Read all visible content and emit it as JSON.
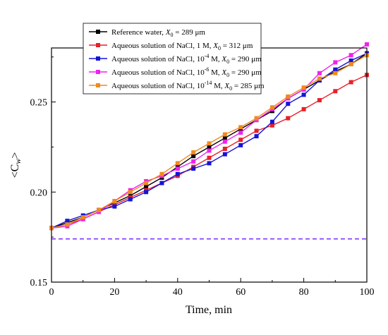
{
  "chart_data": {
    "type": "line",
    "title": "",
    "xlabel": "Time, min",
    "ylabel": "<C",
    "ylabel_sub": "w",
    "ylabel_end": ">",
    "xlim": [
      0,
      100
    ],
    "ylim": [
      0.15,
      0.28
    ],
    "xticks": [
      0,
      20,
      40,
      60,
      80,
      100
    ],
    "yticks": [
      0.15,
      0.2,
      0.25
    ],
    "xtick_labels": [
      "0",
      "20",
      "40",
      "60",
      "80",
      "100"
    ],
    "ytick_labels": [
      "0.15",
      "0.20",
      "0.25"
    ],
    "grid": false,
    "legend_position": "top-left",
    "reference_line": {
      "y": 0.174,
      "color": "#7b2cff",
      "style": "dashed"
    },
    "series": [
      {
        "name_parts": [
          "Reference water, ",
          "X",
          "0",
          " = 289 μm"
        ],
        "color": "#000000",
        "x": [
          0,
          5,
          10,
          15,
          20,
          25,
          30,
          35,
          40,
          45,
          50,
          55,
          60,
          65,
          70,
          75,
          80,
          85,
          90,
          95,
          100
        ],
        "values": [
          0.18,
          0.183,
          0.186,
          0.19,
          0.194,
          0.198,
          0.203,
          0.208,
          0.214,
          0.22,
          0.225,
          0.23,
          0.235,
          0.24,
          0.245,
          0.252,
          0.257,
          0.262,
          0.267,
          0.271,
          0.277
        ]
      },
      {
        "name_parts": [
          "Aqueous solution of NaCl, 1 M, ",
          "X",
          "0",
          " = 312 μm"
        ],
        "color": "#e8202a",
        "x": [
          0,
          5,
          10,
          15,
          20,
          25,
          30,
          35,
          40,
          45,
          50,
          55,
          60,
          65,
          70,
          75,
          80,
          85,
          90,
          95,
          100
        ],
        "values": [
          0.18,
          0.182,
          0.185,
          0.189,
          0.193,
          0.197,
          0.201,
          0.205,
          0.209,
          0.214,
          0.219,
          0.224,
          0.229,
          0.234,
          0.237,
          0.241,
          0.246,
          0.251,
          0.256,
          0.261,
          0.265
        ]
      },
      {
        "name_parts": [
          "Aqueous solution of NaCl, 10",
          "-4",
          " M, ",
          "X",
          "0",
          " = 290 μm"
        ],
        "color": "#1414d8",
        "x": [
          0,
          5,
          10,
          15,
          20,
          25,
          30,
          35,
          40,
          45,
          50,
          55,
          60,
          65,
          70,
          75,
          80,
          85,
          90,
          95,
          100
        ],
        "values": [
          0.18,
          0.184,
          0.187,
          0.19,
          0.192,
          0.196,
          0.2,
          0.205,
          0.21,
          0.213,
          0.216,
          0.221,
          0.226,
          0.231,
          0.239,
          0.249,
          0.254,
          0.262,
          0.268,
          0.273,
          0.277
        ]
      },
      {
        "name_parts": [
          "Aqueous solution of NaCl, 10",
          "-6",
          " M, ",
          "X",
          "0",
          " = 290 μm"
        ],
        "color": "#ee22ee",
        "x": [
          0,
          5,
          10,
          15,
          20,
          25,
          30,
          35,
          40,
          45,
          50,
          55,
          60,
          65,
          70,
          75,
          80,
          85,
          90,
          95,
          100
        ],
        "values": [
          0.18,
          0.181,
          0.185,
          0.189,
          0.195,
          0.201,
          0.206,
          0.209,
          0.213,
          0.217,
          0.223,
          0.228,
          0.233,
          0.24,
          0.246,
          0.252,
          0.257,
          0.266,
          0.272,
          0.276,
          0.282
        ]
      },
      {
        "name_parts": [
          "Aqueous solution of NaCl, 10",
          "-14",
          " M, ",
          "X",
          "0",
          " = 285 μm"
        ],
        "color": "#f08a1c",
        "x": [
          0,
          5,
          10,
          15,
          20,
          25,
          30,
          35,
          40,
          45,
          50,
          55,
          60,
          65,
          70,
          75,
          80,
          85,
          90,
          95,
          100
        ],
        "values": [
          0.18,
          0.182,
          0.186,
          0.19,
          0.195,
          0.2,
          0.205,
          0.21,
          0.216,
          0.222,
          0.227,
          0.232,
          0.236,
          0.241,
          0.247,
          0.253,
          0.258,
          0.263,
          0.266,
          0.271,
          0.276
        ]
      }
    ]
  }
}
